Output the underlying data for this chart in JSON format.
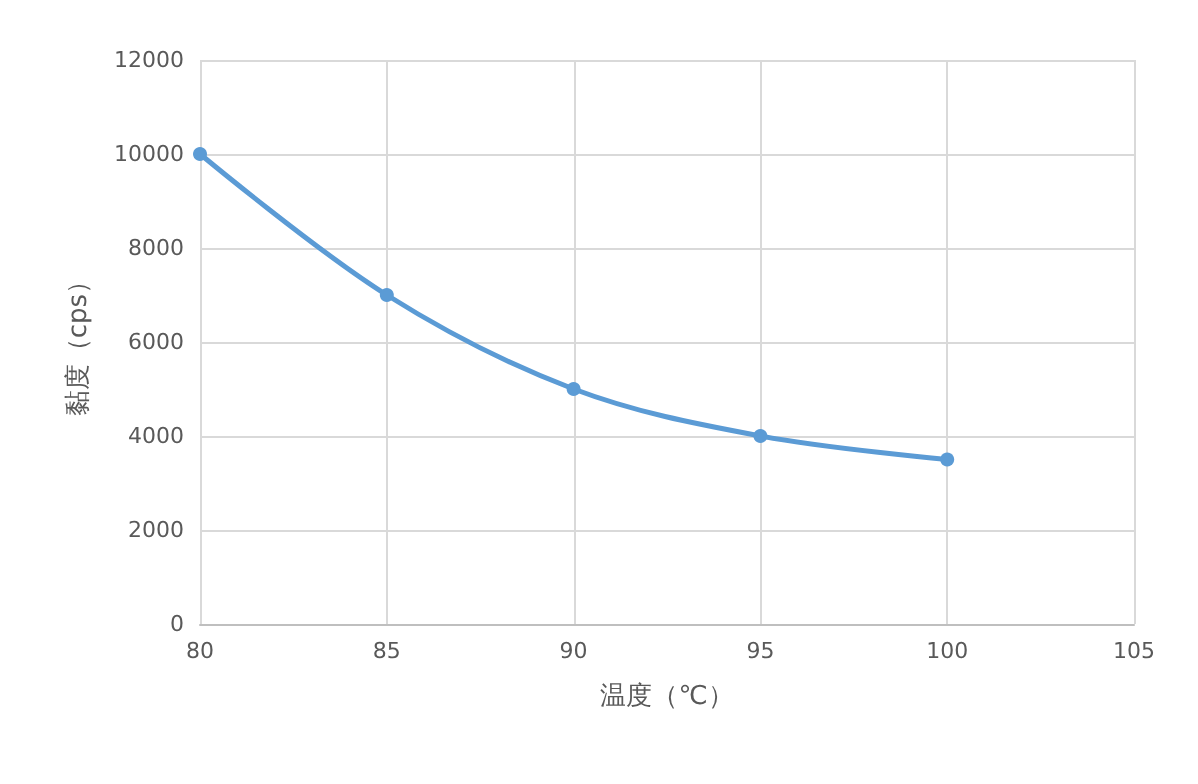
{
  "chart_data": {
    "type": "line",
    "xlabel": "温度（℃）",
    "ylabel": "黏度（cps）",
    "x": [
      80,
      85,
      90,
      95,
      100
    ],
    "series": [
      {
        "color": "#5b9bd5",
        "values": [
          10000,
          7000,
          5000,
          4000,
          3500
        ]
      }
    ],
    "xlim": [
      80,
      105
    ],
    "xticks": [
      80,
      85,
      90,
      95,
      100,
      105
    ],
    "ylim": [
      0,
      12000
    ],
    "yticks": [
      0,
      2000,
      4000,
      6000,
      8000,
      10000,
      12000
    ],
    "grid": true,
    "marker": "circle",
    "line_style": "solid"
  }
}
